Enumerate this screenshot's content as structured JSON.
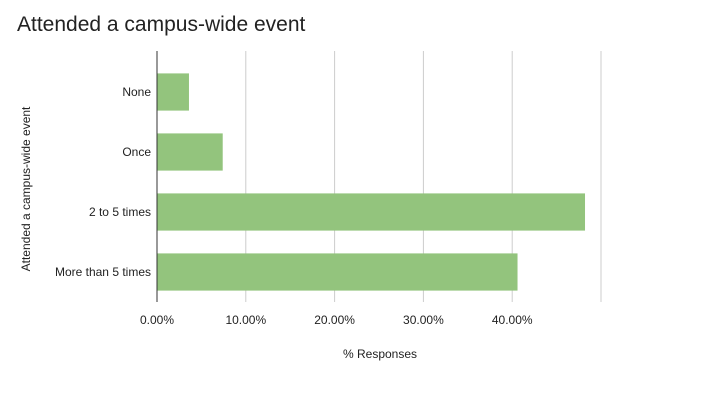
{
  "chart_data": {
    "type": "bar",
    "orientation": "horizontal",
    "title": "Attended a campus-wide event",
    "xlabel": "% Responses",
    "ylabel": "Attended a campus-wide event",
    "categories": [
      "None",
      "Once",
      "2 to 5 times",
      "More than 5 times"
    ],
    "values": [
      3.6,
      7.4,
      48.2,
      40.6
    ],
    "xlim": [
      0,
      50
    ],
    "x_ticks": [
      0,
      10,
      20,
      30,
      40
    ],
    "x_tick_labels": [
      "0.00%",
      "10.00%",
      "20.00%",
      "30.00%",
      "40.00%"
    ],
    "grid": true,
    "legend": "none",
    "bar_color": "#93c47d",
    "gridline_color": "#cccccc",
    "axis_color": "#333333"
  }
}
